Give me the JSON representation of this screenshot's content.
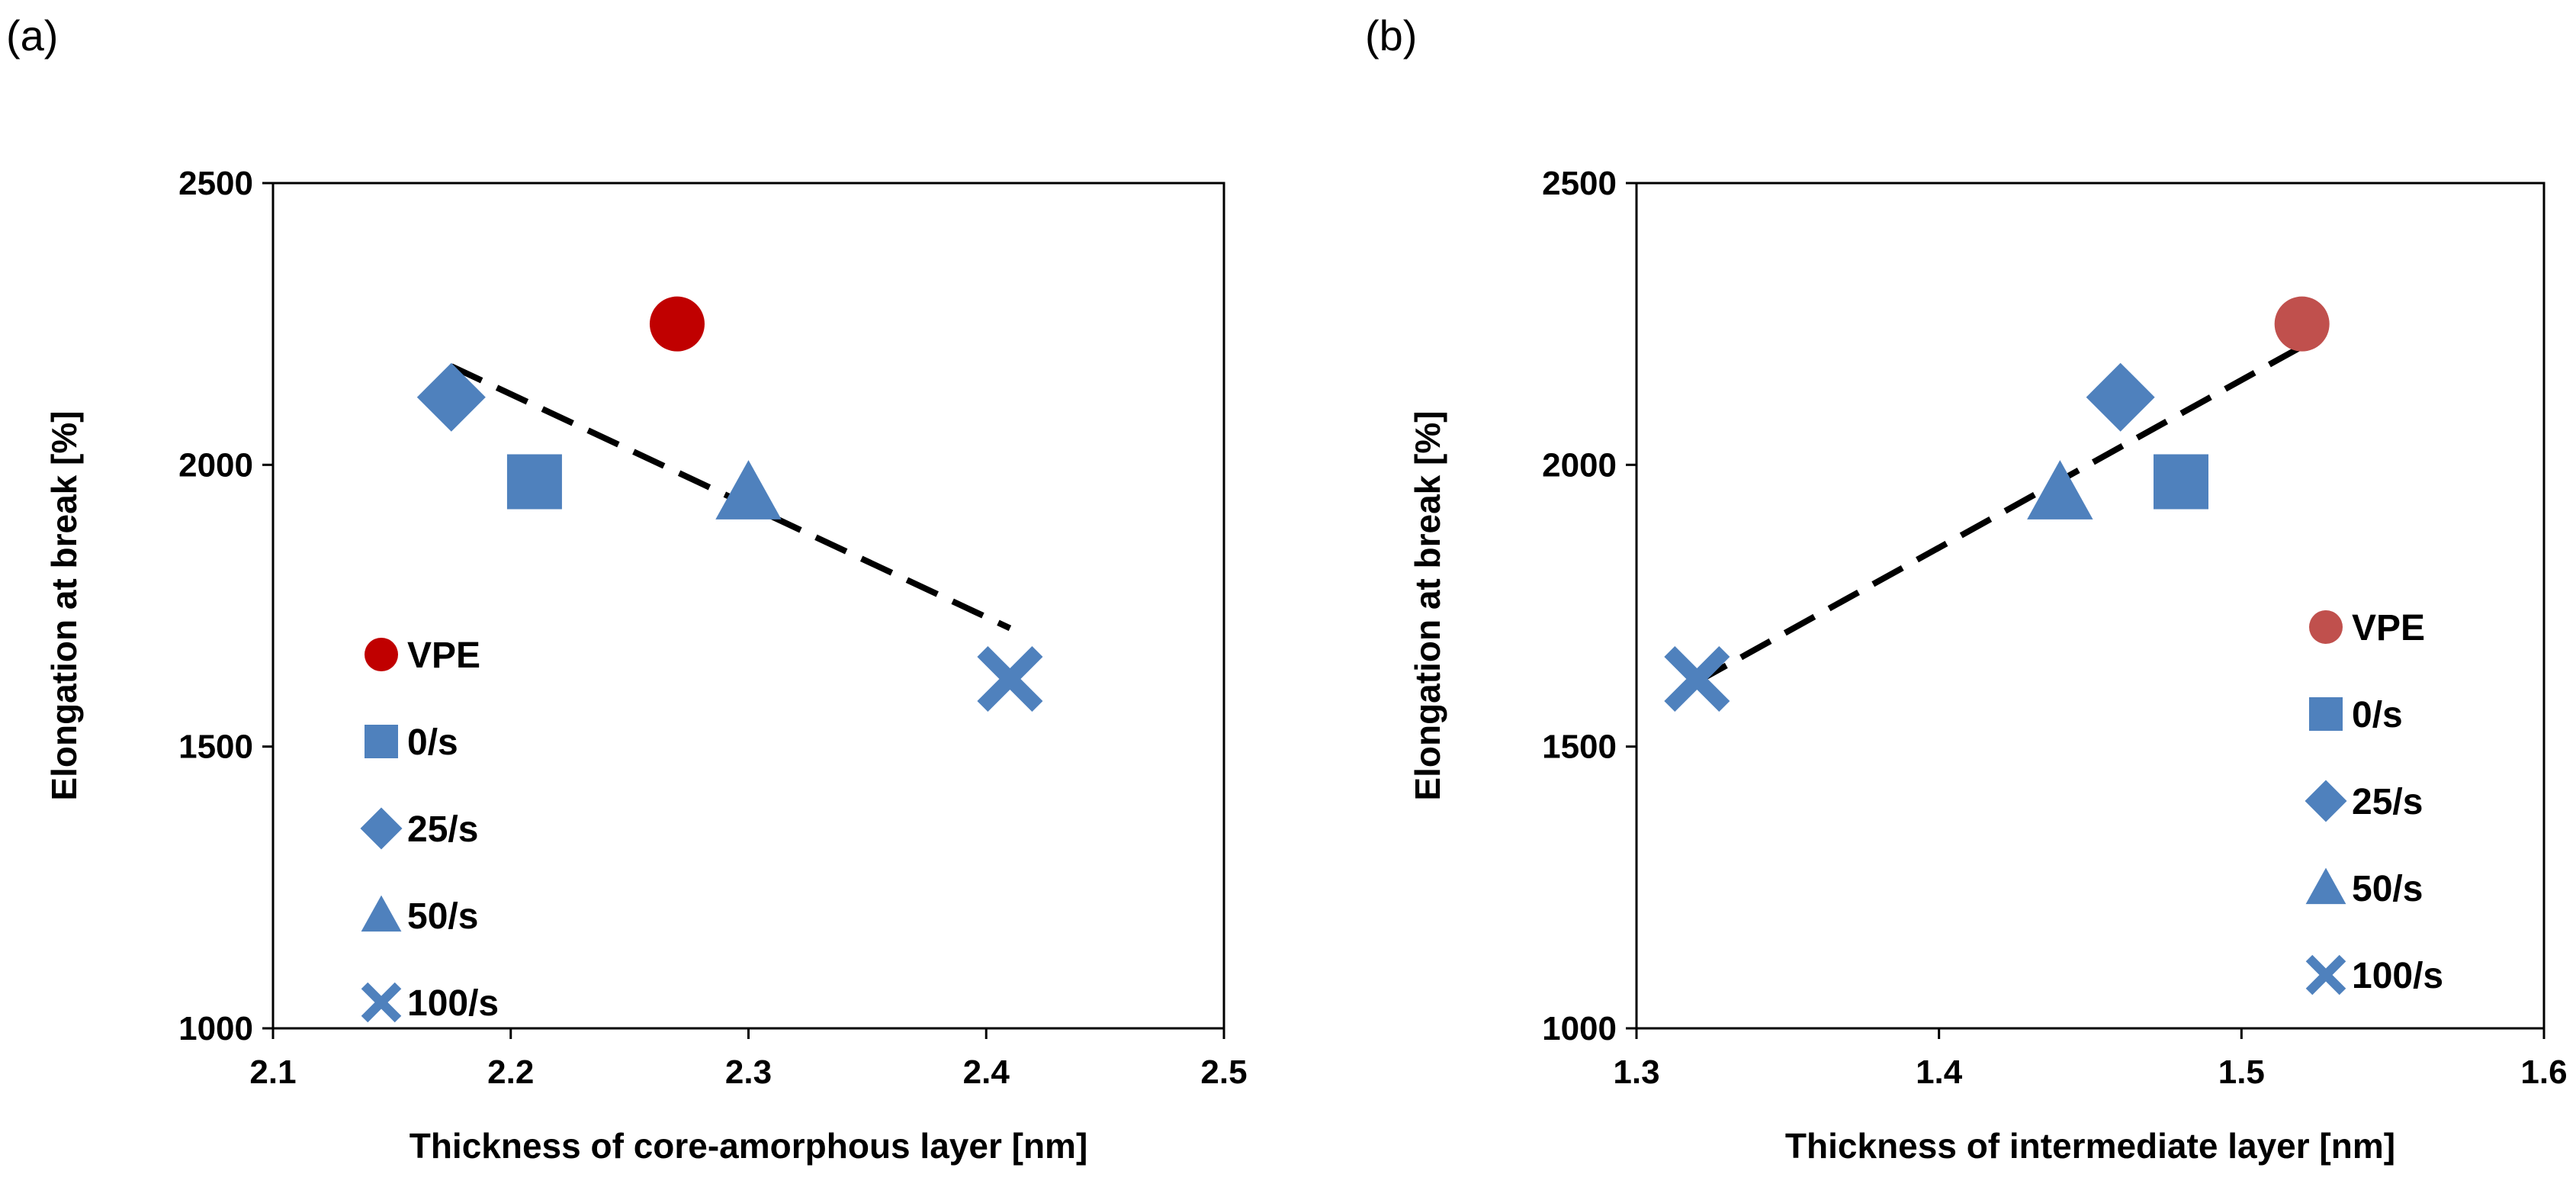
{
  "chart_data": [
    {
      "panel": "(a)",
      "type": "scatter",
      "xlabel": "Thickness of core-amorphous layer [nm]",
      "ylabel": "Elongation at break [%]",
      "xlim": [
        2.1,
        2.5
      ],
      "ylim": [
        1000,
        2500
      ],
      "xticks": [
        "2.1",
        "2.2",
        "2.3",
        "2.4",
        "2.5"
      ],
      "yticks": [
        "1000",
        "1500",
        "2000",
        "2500"
      ],
      "grid": false,
      "legend_position": "left-middle",
      "series": [
        {
          "name": "VPE",
          "marker": "circle",
          "color": "#C00000",
          "x": 2.27,
          "y": 2250
        },
        {
          "name": "0/s",
          "marker": "square",
          "color": "#4F81BD",
          "x": 2.21,
          "y": 1970
        },
        {
          "name": "25/s",
          "marker": "diamond",
          "color": "#4F81BD",
          "x": 2.175,
          "y": 2120
        },
        {
          "name": "50/s",
          "marker": "triangle",
          "color": "#4F81BD",
          "x": 2.3,
          "y": 1950
        },
        {
          "name": "100/s",
          "marker": "x",
          "color": "#4F81BD",
          "x": 2.41,
          "y": 1620
        }
      ],
      "trendline": {
        "style": "dashed",
        "color": "#000000",
        "x": [
          2.175,
          2.41
        ],
        "y": [
          2175,
          1710
        ]
      }
    },
    {
      "panel": "(b)",
      "type": "scatter",
      "xlabel": "Thickness of intermediate layer [nm]",
      "ylabel": "Elongation at break [%]",
      "xlim": [
        1.3,
        1.6
      ],
      "ylim": [
        1000,
        2500
      ],
      "xticks": [
        "1.3",
        "1.4",
        "1.5",
        "1.6"
      ],
      "yticks": [
        "1000",
        "1500",
        "2000",
        "2500"
      ],
      "grid": false,
      "legend_position": "right-middle",
      "series": [
        {
          "name": "VPE",
          "marker": "circle",
          "color": "#C0504D",
          "x": 1.52,
          "y": 2250
        },
        {
          "name": "0/s",
          "marker": "square",
          "color": "#4F81BD",
          "x": 1.48,
          "y": 1970
        },
        {
          "name": "25/s",
          "marker": "diamond",
          "color": "#4F81BD",
          "x": 1.46,
          "y": 2120
        },
        {
          "name": "50/s",
          "marker": "triangle",
          "color": "#4F81BD",
          "x": 1.44,
          "y": 1950
        },
        {
          "name": "100/s",
          "marker": "x",
          "color": "#4F81BD",
          "x": 1.32,
          "y": 1620
        }
      ],
      "trendline": {
        "style": "dashed",
        "color": "#000000",
        "x": [
          1.32,
          1.52
        ],
        "y": [
          1615,
          2210
        ]
      }
    }
  ]
}
